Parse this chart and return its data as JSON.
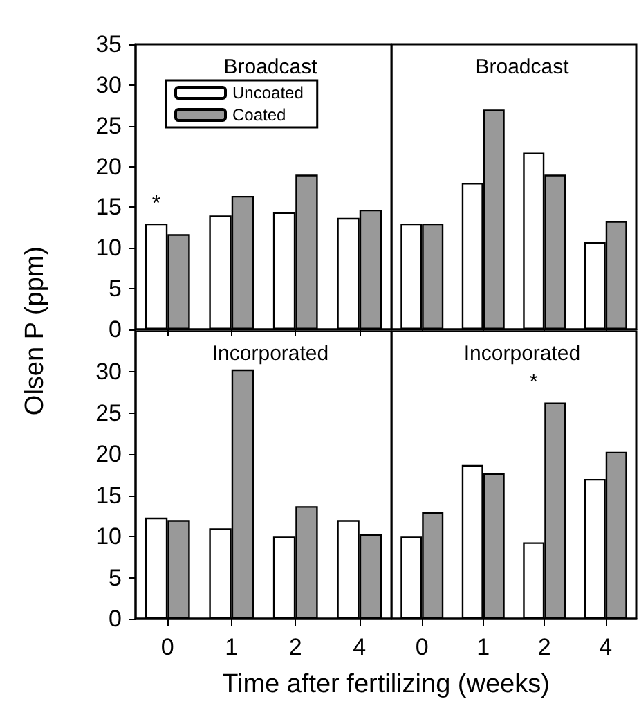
{
  "chart_data": [
    {
      "type": "bar",
      "subtitle": "Broadcast",
      "ylabel": "Olsen P (ppm)",
      "categories": [
        "0",
        "1",
        "2",
        "4"
      ],
      "series": [
        {
          "name": "Uncoated",
          "color": "#ffffff",
          "values": [
            13,
            14,
            14.4,
            13.7
          ]
        },
        {
          "name": "Coated",
          "color": "#999999",
          "values": [
            11.7,
            16.4,
            19,
            14.7
          ]
        }
      ],
      "ylim": [
        0,
        35
      ],
      "yticks": [
        0,
        5,
        10,
        15,
        20,
        25,
        30,
        35
      ],
      "legend": "top left",
      "tick_labels": "y",
      "grid": false,
      "annotations": [
        {
          "text": "*",
          "x": "0",
          "y": 13
        }
      ]
    },
    {
      "type": "bar",
      "subtitle": "Broadcast",
      "categories": [
        "0",
        "1",
        "2",
        "4"
      ],
      "series": [
        {
          "color": "#ffffff",
          "values": [
            13,
            18,
            21.7,
            10.7
          ]
        },
        {
          "color": "#999999",
          "values": [
            13,
            27,
            19,
            13.3
          ]
        }
      ],
      "ylim": [
        0,
        35
      ],
      "yticks": [
        0,
        5,
        10,
        15,
        20,
        25,
        30,
        35
      ],
      "legend": false,
      "tick_labels": false,
      "grid": false
    },
    {
      "type": "bar",
      "subtitle": "Incorporated",
      "xlabel": "Time after fertilizing (weeks)",
      "categories": [
        "0",
        "1",
        "2",
        "4"
      ],
      "series": [
        {
          "color": "#ffffff",
          "values": [
            12.3,
            11,
            10,
            12
          ]
        },
        {
          "color": "#999999",
          "values": [
            12,
            30.3,
            13.7,
            10.3
          ]
        }
      ],
      "ylim": [
        0,
        35
      ],
      "yticks": [
        0,
        5,
        10,
        15,
        20,
        25,
        30
      ],
      "legend": false,
      "grid": false
    },
    {
      "type": "bar",
      "subtitle": "Incorporated",
      "categories": [
        "0",
        "1",
        "2",
        "4"
      ],
      "series": [
        {
          "color": "#ffffff",
          "values": [
            10,
            18.7,
            9.3,
            17
          ]
        },
        {
          "color": "#999999",
          "values": [
            13,
            17.7,
            26.3,
            20.3
          ]
        }
      ],
      "ylim": [
        0,
        35
      ],
      "yticks": [
        0,
        5,
        10,
        15,
        20,
        25,
        30
      ],
      "legend": false,
      "tick_labels": "x",
      "grid": false,
      "annotations": [
        {
          "text": "*",
          "x": "2",
          "y": 26.3
        }
      ]
    }
  ]
}
